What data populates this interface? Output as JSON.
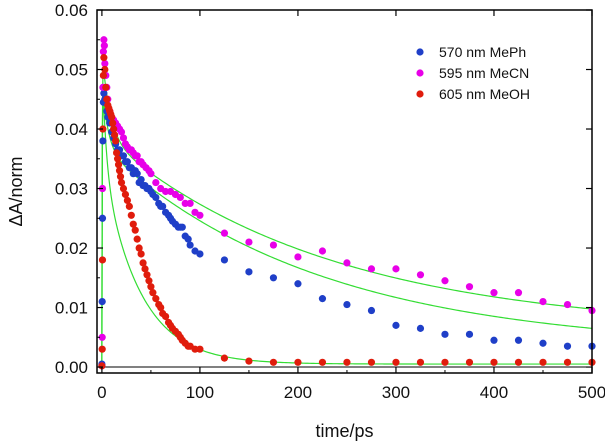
{
  "chart_data": {
    "type": "scatter",
    "title": "",
    "xlabel": "time/ps",
    "ylabel": "ΔA/norm",
    "xlim": [
      -5,
      500
    ],
    "ylim": [
      -0.001,
      0.06
    ],
    "xticks": [
      0,
      100,
      200,
      300,
      400,
      500
    ],
    "xtick_labels": [
      "0",
      "100",
      "200",
      "300",
      "400",
      "500"
    ],
    "yticks": [
      0.0,
      0.01,
      0.02,
      0.03,
      0.04,
      0.05,
      0.06
    ],
    "ytick_labels": [
      "0.00",
      "0.01",
      "0.02",
      "0.03",
      "0.04",
      "0.05",
      "0.06"
    ],
    "legend_position": "top-right",
    "fit_color": "#33dd33",
    "series": [
      {
        "name": "570 nm MePh",
        "color": "#1f3fc8",
        "fit": {
          "baseline": 0.003,
          "components": [
            [
              0.011,
              6
            ],
            [
              0.034,
              220
            ]
          ]
        },
        "x": [
          0,
          0.3,
          0.6,
          1,
          1.5,
          2,
          3,
          4,
          5,
          6,
          8,
          10,
          12,
          14,
          16,
          18,
          20,
          22,
          24,
          26,
          28,
          30,
          32,
          34,
          36,
          38,
          40,
          42,
          44,
          46,
          48,
          50,
          52,
          55,
          58,
          60,
          62,
          65,
          68,
          70,
          72,
          75,
          78,
          80,
          82,
          85,
          88,
          90,
          95,
          100,
          125,
          150,
          175,
          200,
          225,
          250,
          275,
          300,
          325,
          350,
          375,
          400,
          425,
          450,
          475,
          500
        ],
        "y": [
          0.0005,
          0.011,
          0.025,
          0.038,
          0.0445,
          0.046,
          0.045,
          0.0445,
          0.043,
          0.042,
          0.041,
          0.0395,
          0.0385,
          0.0375,
          0.0365,
          0.0365,
          0.0355,
          0.0355,
          0.0345,
          0.0345,
          0.0335,
          0.0335,
          0.0325,
          0.033,
          0.0325,
          0.031,
          0.0315,
          0.0305,
          0.0305,
          0.03,
          0.03,
          0.0295,
          0.029,
          0.0285,
          0.0275,
          0.027,
          0.027,
          0.026,
          0.0255,
          0.025,
          0.0245,
          0.024,
          0.0235,
          0.0235,
          0.0235,
          0.022,
          0.0215,
          0.0205,
          0.0195,
          0.019,
          0.018,
          0.016,
          0.015,
          0.014,
          0.0115,
          0.0105,
          0.0095,
          0.007,
          0.0065,
          0.0055,
          0.0055,
          0.0045,
          0.0045,
          0.004,
          0.0035,
          0.0035
        ]
      },
      {
        "name": "595 nm MeCN",
        "color": "#e800e8",
        "fit": {
          "baseline": 0.006,
          "components": [
            [
              0.014,
              8
            ],
            [
              0.033,
              230
            ]
          ]
        },
        "x": [
          0,
          0.3,
          0.6,
          1,
          1.5,
          2,
          2.5,
          3,
          4,
          5,
          6,
          8,
          10,
          12,
          14,
          16,
          18,
          20,
          22,
          24,
          26,
          28,
          30,
          32,
          34,
          36,
          38,
          40,
          42,
          45,
          48,
          50,
          55,
          60,
          65,
          70,
          75,
          80,
          85,
          90,
          95,
          100,
          125,
          150,
          175,
          200,
          225,
          250,
          275,
          300,
          325,
          350,
          375,
          400,
          425,
          450,
          475,
          500
        ],
        "y": [
          0.0002,
          0.005,
          0.03,
          0.047,
          0.053,
          0.055,
          0.054,
          0.051,
          0.049,
          0.047,
          0.045,
          0.043,
          0.042,
          0.0415,
          0.041,
          0.0405,
          0.04,
          0.0395,
          0.0385,
          0.0375,
          0.037,
          0.0365,
          0.0365,
          0.036,
          0.0355,
          0.0355,
          0.0345,
          0.0345,
          0.034,
          0.0335,
          0.033,
          0.0325,
          0.031,
          0.03,
          0.0295,
          0.0295,
          0.029,
          0.0285,
          0.0275,
          0.0275,
          0.026,
          0.0255,
          0.0225,
          0.021,
          0.0205,
          0.0185,
          0.0195,
          0.0175,
          0.0165,
          0.0165,
          0.0155,
          0.0145,
          0.0135,
          0.0125,
          0.0125,
          0.011,
          0.0105,
          0.0095
        ]
      },
      {
        "name": "605 nm MeOH",
        "color": "#e01c0c",
        "fit": {
          "baseline": 0.0005,
          "components": [
            [
              0.018,
              4
            ],
            [
              0.034,
              38
            ]
          ]
        },
        "x": [
          0,
          0.3,
          0.6,
          1,
          1.5,
          2,
          3,
          4,
          5,
          6,
          7,
          8,
          9,
          10,
          11,
          12,
          13,
          14,
          15,
          16,
          17,
          18,
          19,
          20,
          22,
          24,
          26,
          28,
          30,
          32,
          34,
          36,
          38,
          40,
          42,
          44,
          46,
          48,
          50,
          52,
          55,
          58,
          60,
          62,
          65,
          68,
          70,
          72,
          75,
          78,
          80,
          82,
          85,
          88,
          90,
          95,
          100,
          125,
          150,
          175,
          200,
          225,
          250,
          275,
          300,
          325,
          350,
          375,
          400,
          425,
          450,
          475,
          500
        ],
        "y": [
          0.0002,
          0.003,
          0.018,
          0.04,
          0.049,
          0.052,
          0.05,
          0.047,
          0.045,
          0.044,
          0.0435,
          0.043,
          0.0425,
          0.042,
          0.041,
          0.04,
          0.039,
          0.038,
          0.036,
          0.035,
          0.034,
          0.033,
          0.032,
          0.031,
          0.03,
          0.029,
          0.028,
          0.027,
          0.0255,
          0.024,
          0.023,
          0.0215,
          0.02,
          0.019,
          0.0175,
          0.0165,
          0.0155,
          0.0145,
          0.0135,
          0.0125,
          0.0115,
          0.0105,
          0.01,
          0.009,
          0.0085,
          0.0075,
          0.007,
          0.0065,
          0.006,
          0.0055,
          0.005,
          0.0045,
          0.004,
          0.0035,
          0.0035,
          0.003,
          0.003,
          0.0015,
          0.001,
          0.0008,
          0.0008,
          0.0008,
          0.0008,
          0.0008,
          0.0008,
          0.0008,
          0.0008,
          0.0008,
          0.0008,
          0.0008,
          0.0008,
          0.0008,
          0.0008
        ]
      }
    ]
  }
}
